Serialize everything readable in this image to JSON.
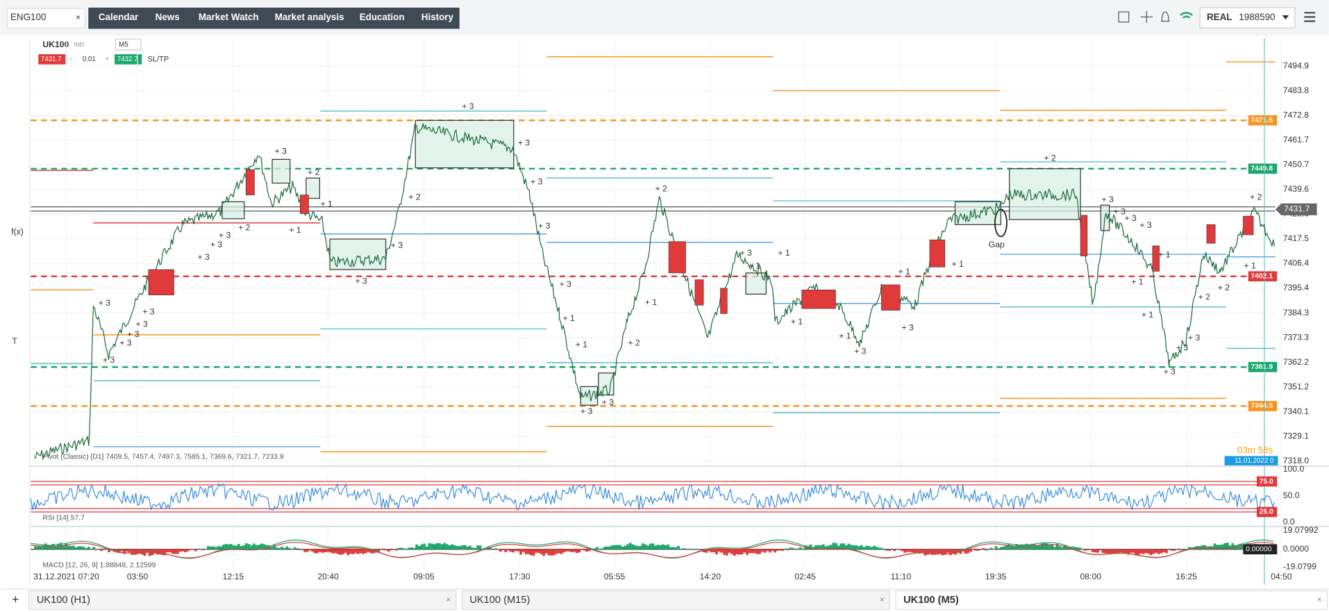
{
  "top_bar": {
    "symbol": "ENG100",
    "close": "×",
    "menu": [
      "Calendar",
      "News",
      "Market Watch",
      "Market analysis",
      "Education",
      "History"
    ],
    "account_type": "REAL",
    "account_id": "1988590"
  },
  "chart_header": {
    "symbol": "UK100",
    "tag": "IND",
    "timeframe": "M5",
    "bid": "7431.7",
    "minus": "–",
    "volume": "0.01",
    "plus": "+",
    "ask": "7432.7",
    "sltp": "SL/TP"
  },
  "left_toolbar": [
    "f(x)",
    "T"
  ],
  "price_axis": [
    "7494.9",
    "7483.8",
    "7472.8",
    "7461.7",
    "7450.7",
    "7439.6",
    "7428.6",
    "7417.5",
    "7406.4",
    "7395.4",
    "7384.3",
    "7373.3",
    "7362.2",
    "7351.2",
    "7340.1",
    "7329.1",
    "7318.0"
  ],
  "level_labels": [
    {
      "text": "7471.5",
      "color": "#f7941d"
    },
    {
      "text": "7449.8",
      "color": "#1aa86b"
    },
    {
      "text": "7402.1",
      "color": "#e03a3a"
    },
    {
      "text": "7361.9",
      "color": "#1aa86b"
    },
    {
      "text": "7344.5",
      "color": "#f7941d"
    }
  ],
  "current_price": "7431.7",
  "countdown": "03m 58s",
  "date_badge": "11.01.2022 0",
  "pivot_legend": "Pivot (Classic) [D1] 7409.5, 7457.4, 7497.3, 7585.1, 7369.6, 7321.7, 7233.9",
  "rsi": {
    "legend": "RSI [14] 57.7",
    "ticks": [
      "100.0",
      "50.0",
      "0.0"
    ],
    "levels": [
      "75.0",
      "25.0"
    ]
  },
  "macd": {
    "legend": "MACD [12, 26, 9] 1.88848, 2.12599",
    "ticks": [
      "19.07992",
      "0.0000",
      "-19.0799"
    ],
    "current": "0.00000"
  },
  "time_axis": [
    "31.12.2021 07:20",
    "03:50",
    "12:15",
    "20:40",
    "09:05",
    "17:30",
    "05:55",
    "14:20",
    "02:45",
    "11:10",
    "19:35",
    "08:00",
    "16:25",
    "04:50"
  ],
  "annotations": [
    "+ 3",
    "+ 3",
    "+ 3",
    "+ 3",
    "+ 3",
    "+ 3",
    "+ 3",
    "+ 3",
    "+ 3",
    "+ 2",
    "+ 3",
    "+ 2",
    "+ 1",
    "+ 1",
    "+ 3",
    "+ 3",
    "+ 2",
    "+ 3",
    "+ 3",
    "+ 3",
    "+ 3",
    "+ 3",
    "+ 1",
    "+ 1",
    "+ 3",
    "+ 3",
    "+ 2",
    "+ 2",
    "+ 1",
    "+ 3",
    "+ 1",
    "+ 1",
    "+ 1",
    "+ 1",
    "+ 3",
    "+ 3",
    "+ 1",
    "+ 1",
    "Gap",
    "+ 2",
    "+ 3",
    "+ 3",
    "+ 3",
    "+ 3",
    "+ 1",
    "+ 1",
    "+ 1",
    "+ 3",
    "+ 3",
    "+ 3",
    "+ 2",
    "+ 2",
    "+ 1",
    "+ 2"
  ],
  "tabs": [
    "UK100 (H1)",
    "UK100 (M15)",
    "UK100 (M5)"
  ],
  "add_tab": "+"
}
